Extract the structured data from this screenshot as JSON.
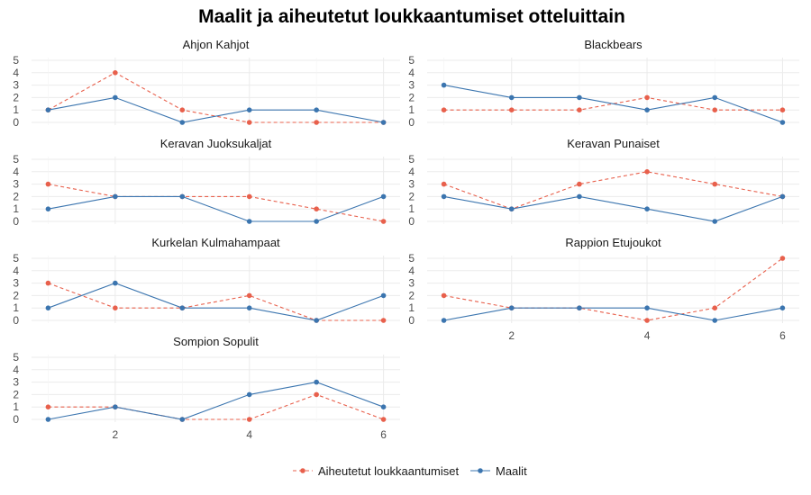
{
  "chart_data": {
    "type": "line",
    "title": "Maalit ja aiheutetut loukkaantumiset otteluittain",
    "x": [
      1,
      2,
      3,
      4,
      5,
      6
    ],
    "x_ticks": [
      2,
      4,
      6
    ],
    "y_ticks": [
      0,
      1,
      2,
      3,
      4,
      5
    ],
    "ylim": [
      0,
      5
    ],
    "grid": true,
    "legend_position": "bottom",
    "series_info": [
      {
        "key": "injuries",
        "name": "Aiheutetut loukkaantumiset",
        "color": "#E8604C",
        "dash": "dashed"
      },
      {
        "key": "goals",
        "name": "Maalit",
        "color": "#3B75AF",
        "dash": "solid"
      }
    ],
    "panels": [
      {
        "title": "Ahjon Kahjot",
        "injuries": [
          1,
          4,
          1,
          0,
          0,
          0
        ],
        "goals": [
          1,
          2,
          0,
          1,
          1,
          0
        ]
      },
      {
        "title": "Blackbears",
        "injuries": [
          1,
          1,
          1,
          2,
          1,
          1
        ],
        "goals": [
          3,
          2,
          2,
          1,
          2,
          0
        ]
      },
      {
        "title": "Keravan Juoksukaljat",
        "injuries": [
          3,
          2,
          2,
          2,
          1,
          0
        ],
        "goals": [
          1,
          2,
          2,
          0,
          0,
          2
        ]
      },
      {
        "title": "Keravan Punaiset",
        "injuries": [
          3,
          1,
          3,
          4,
          3,
          2
        ],
        "goals": [
          2,
          1,
          2,
          1,
          0,
          2
        ]
      },
      {
        "title": "Kurkelan Kulmahampaat",
        "injuries": [
          3,
          1,
          1,
          2,
          0,
          0
        ],
        "goals": [
          1,
          3,
          1,
          1,
          0,
          2
        ]
      },
      {
        "title": "Rappion Etujoukot",
        "injuries": [
          2,
          1,
          1,
          0,
          1,
          5
        ],
        "goals": [
          0,
          1,
          1,
          1,
          0,
          1
        ]
      },
      {
        "title": "Sompion Sopulit",
        "injuries": [
          1,
          1,
          0,
          0,
          2,
          0
        ],
        "goals": [
          0,
          1,
          0,
          2,
          3,
          1
        ]
      }
    ]
  }
}
